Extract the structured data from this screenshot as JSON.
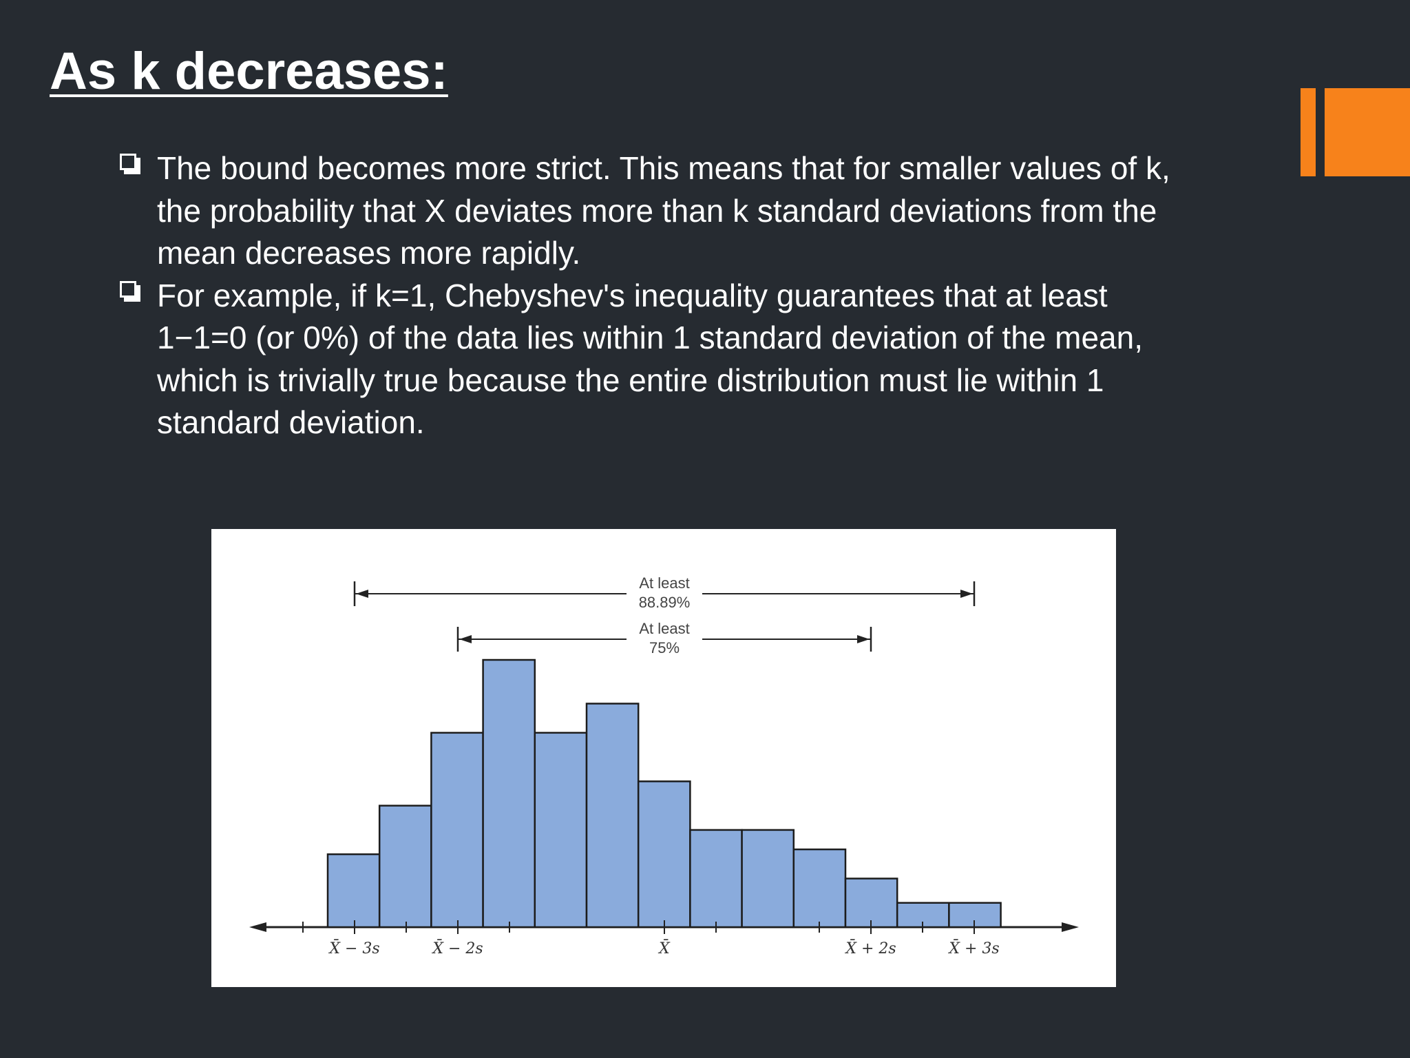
{
  "slide": {
    "title": "As k decreases:",
    "accent_color": "#f7821b",
    "background_color": "#262b31"
  },
  "bullets": [
    {
      "icon": "checkbox-bullet-icon",
      "text": "The bound becomes more strict. This means that for smaller values of k, the probability that X deviates more than k standard deviations from the mean decreases more rapidly."
    },
    {
      "icon": "checkbox-bullet-icon",
      "text": "For example, if k=1, Chebyshev's inequality guarantees that at least 1−1=0 (or 0%) of the data lies within 1 standard deviation of the mean, which is trivially true because the entire distribution must lie within 1 standard deviation."
    }
  ],
  "chart_data": {
    "type": "bar",
    "values": [
      1.5,
      2.5,
      4.0,
      5.5,
      4.0,
      4.6,
      3.0,
      2.0,
      2.0,
      1.6,
      1.0,
      0.5,
      0.5
    ],
    "bar_color": "#8aabdc",
    "ylim": [
      0,
      5.5
    ],
    "x_unit_positions_note": "bars span from mean-3.5s to mean+3.1s in equal widths",
    "tick_labels": [
      "X̄ − 3s",
      "X̄ − 2s",
      "X̄",
      "X̄ + 2s",
      "X̄ + 3s"
    ],
    "annotations": [
      {
        "text_lines": [
          "At least",
          "88.89%"
        ],
        "from": "X̄ − 3s",
        "to": "X̄ + 3s"
      },
      {
        "text_lines": [
          "At least",
          "75%"
        ],
        "from": "X̄ − 2s",
        "to": "X̄ + 2s"
      }
    ],
    "xlabel": "",
    "ylabel": "",
    "grid": false
  }
}
